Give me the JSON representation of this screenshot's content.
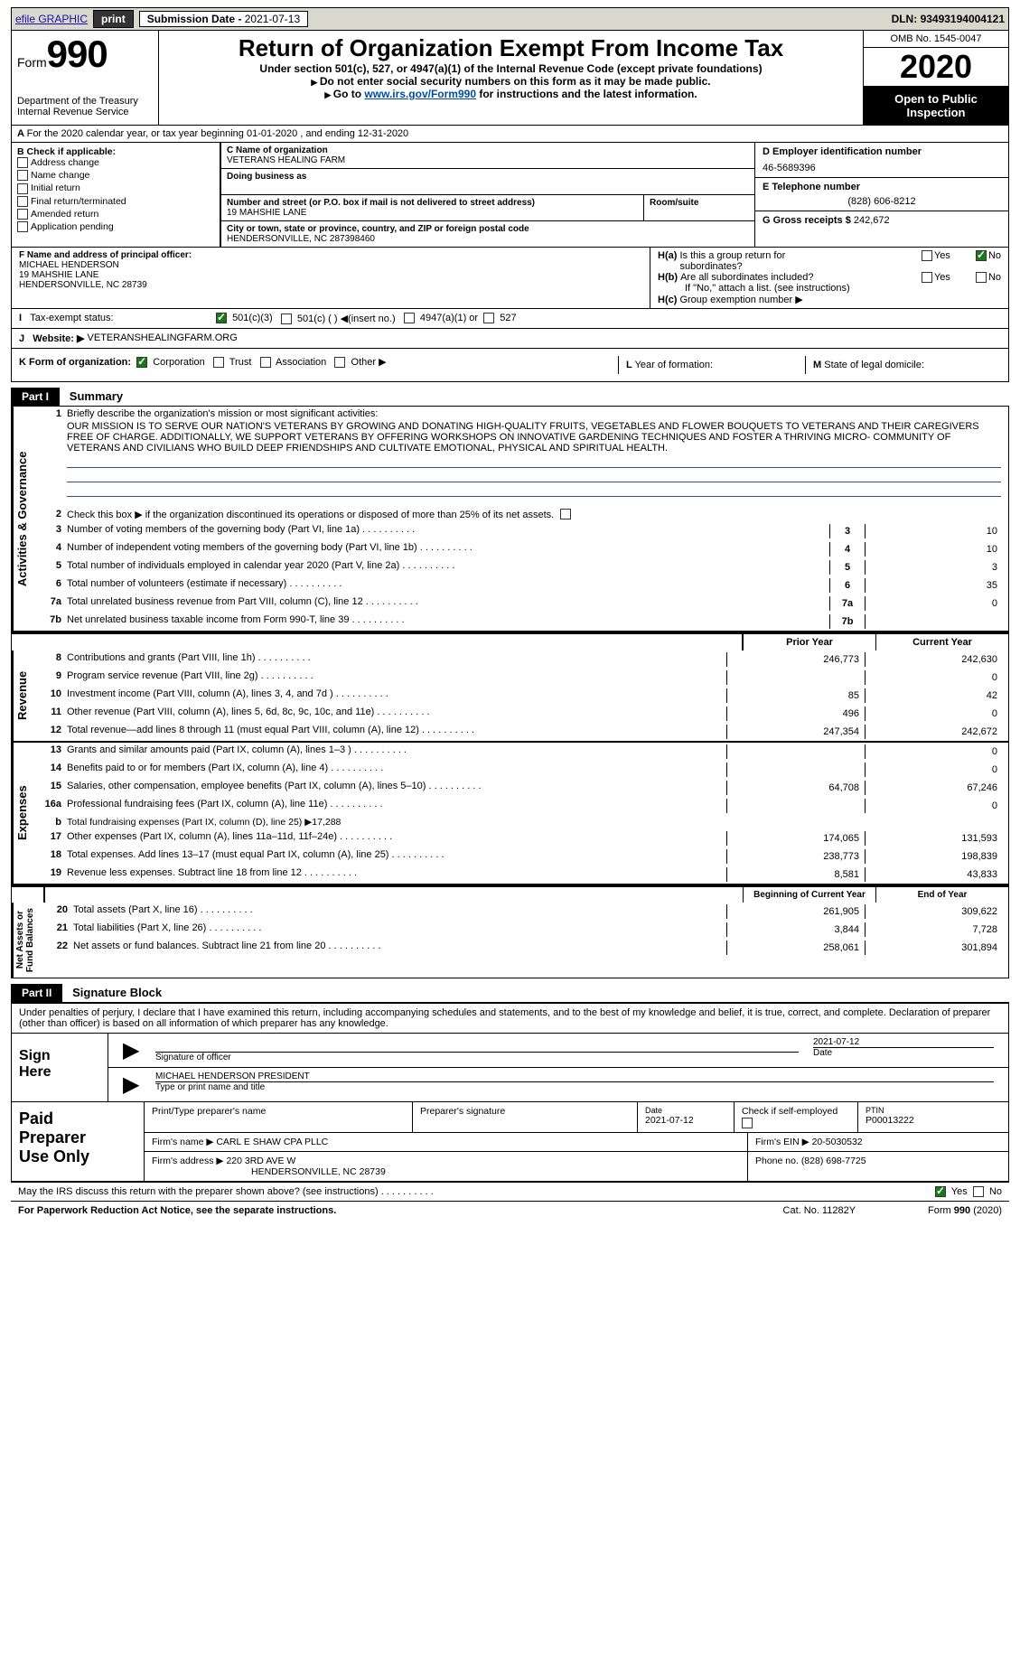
{
  "top": {
    "efile": "efile GRAPHIC",
    "print": "print",
    "sub_label": "Submission Date - ",
    "sub_date": "2021-07-13",
    "dln_label": "DLN: ",
    "dln": "93493194004121"
  },
  "header": {
    "form_word": "Form",
    "form_no": "990",
    "dept1": "Department of the Treasury",
    "dept2": "Internal Revenue Service",
    "title": "Return of Organization Exempt From Income Tax",
    "sub1": "Under section 501(c), 527, or 4947(a)(1) of the Internal Revenue Code (except private foundations)",
    "sub2": "Do not enter social security numbers on this form as it may be made public.",
    "sub3_pre": "Go to ",
    "sub3_link": "www.irs.gov/Form990",
    "sub3_post": " for instructions and the latest information.",
    "omb": "OMB No. 1545-0047",
    "year": "2020",
    "open1": "Open to Public",
    "open2": "Inspection"
  },
  "periodA": "For the 2020 calendar year, or tax year beginning 01-01-2020    , and ending 12-31-2020",
  "B": {
    "hdr": "Check if applicable:",
    "addr": "Address change",
    "name": "Name change",
    "init": "Initial return",
    "finalr": "Final return/terminated",
    "amend": "Amended return",
    "app": "Application pending"
  },
  "C": {
    "name_lbl": "C Name of organization",
    "name": "VETERANS HEALING FARM",
    "dba_lbl": "Doing business as",
    "street_lbl": "Number and street (or P.O. box if mail is not delivered to street address)",
    "room_lbl": "Room/suite",
    "street": "19 MAHSHIE LANE",
    "city_lbl": "City or town, state or province, country, and ZIP or foreign postal code",
    "city": "HENDERSONVILLE, NC  287398460"
  },
  "D": {
    "lbl": "D Employer identification number",
    "val": "46-5689396"
  },
  "E": {
    "lbl": "E Telephone number",
    "val": "(828) 606-8212"
  },
  "G": {
    "lbl": "G Gross receipts $",
    "val": "242,672"
  },
  "F": {
    "lbl": "F  Name and address of principal officer:",
    "name": "MICHAEL HENDERSON",
    "street": "19 MAHSHIE LANE",
    "city": "HENDERSONVILLE, NC  28739"
  },
  "H": {
    "a": "Is this a group return for",
    "a2": "subordinates?",
    "b": "Are all subordinates included?",
    "bnote": "If \"No,\" attach a list. (see instructions)",
    "c": "Group exemption number ▶",
    "yes": "Yes",
    "no": "No"
  },
  "I": {
    "lbl": "Tax-exempt status:",
    "c3": "501(c)(3)",
    "c": "501(c) (  ) ◀(insert no.)",
    "a1": "4947(a)(1) or",
    "s527": "527"
  },
  "J": {
    "lbl": "Website: ▶",
    "val": "VETERANSHEALINGFARM.ORG"
  },
  "K": {
    "lbl": "Form of organization:",
    "corp": "Corporation",
    "trust": "Trust",
    "assoc": "Association",
    "other": "Other ▶"
  },
  "L": {
    "lbl": "Year of formation:"
  },
  "M": {
    "lbl": "State of legal domicile:"
  },
  "part1": {
    "hdr": "Part I",
    "title": "Summary"
  },
  "s1": {
    "l1": "Briefly describe the organization's mission or most significant activities:",
    "mission": "OUR MISSION IS TO SERVE OUR NATION'S VETERANS BY GROWING AND DONATING HIGH-QUALITY FRUITS, VEGETABLES AND FLOWER BOUQUETS TO VETERANS AND THEIR CAREGIVERS FREE OF CHARGE. ADDITIONALLY, WE SUPPORT VETERANS BY OFFERING WORKSHOPS ON INNOVATIVE GARDENING TECHNIQUES AND FOSTER A THRIVING MICRO- COMMUNITY OF VETERANS AND CIVILIANS WHO BUILD DEEP FRIENDSHIPS AND CULTIVATE EMOTIONAL, PHYSICAL AND SPIRITUAL HEALTH.",
    "l2": "Check this box ▶         if the organization discontinued its operations or disposed of more than 25% of its net assets.",
    "rows": [
      {
        "n": "3",
        "t": "Number of voting members of the governing body (Part VI, line 1a)",
        "v": "10"
      },
      {
        "n": "4",
        "t": "Number of independent voting members of the governing body (Part VI, line 1b)",
        "v": "10"
      },
      {
        "n": "5",
        "t": "Total number of individuals employed in calendar year 2020 (Part V, line 2a)",
        "v": "3"
      },
      {
        "n": "6",
        "t": "Total number of volunteers (estimate if necessary)",
        "v": "35"
      },
      {
        "n": "7a",
        "t": "Total unrelated business revenue from Part VIII, column (C), line 12",
        "v": "0"
      },
      {
        "n": "7b",
        "t": "Net unrelated business taxable income from Form 990-T, line 39",
        "num": "7b",
        "v": ""
      }
    ]
  },
  "two_hdr": {
    "prior": "Prior Year",
    "curr": "Current Year"
  },
  "rev": {
    "rows": [
      {
        "n": "8",
        "t": "Contributions and grants (Part VIII, line 1h)",
        "p": "246,773",
        "c": "242,630"
      },
      {
        "n": "9",
        "t": "Program service revenue (Part VIII, line 2g)",
        "p": "",
        "c": "0"
      },
      {
        "n": "10",
        "t": "Investment income (Part VIII, column (A), lines 3, 4, and 7d )",
        "p": "85",
        "c": "42"
      },
      {
        "n": "11",
        "t": "Other revenue (Part VIII, column (A), lines 5, 6d, 8c, 9c, 10c, and 11e)",
        "p": "496",
        "c": "0"
      },
      {
        "n": "12",
        "t": "Total revenue—add lines 8 through 11 (must equal Part VIII, column (A), line 12)",
        "p": "247,354",
        "c": "242,672"
      }
    ]
  },
  "exp": {
    "rows": [
      {
        "n": "13",
        "t": "Grants and similar amounts paid (Part IX, column (A), lines 1–3 )",
        "p": "",
        "c": "0"
      },
      {
        "n": "14",
        "t": "Benefits paid to or for members (Part IX, column (A), line 4)",
        "p": "",
        "c": "0"
      },
      {
        "n": "15",
        "t": "Salaries, other compensation, employee benefits (Part IX, column (A), lines 5–10)",
        "p": "64,708",
        "c": "67,246"
      },
      {
        "n": "16a",
        "t": "Professional fundraising fees (Part IX, column (A), line 11e)",
        "p": "",
        "c": "0"
      },
      {
        "n": "b",
        "t": "Total fundraising expenses (Part IX, column (D), line 25) ▶17,288",
        "p": null,
        "c": null
      },
      {
        "n": "17",
        "t": "Other expenses (Part IX, column (A), lines 11a–11d, 11f–24e)",
        "p": "174,065",
        "c": "131,593"
      },
      {
        "n": "18",
        "t": "Total expenses. Add lines 13–17 (must equal Part IX, column (A), line 25)",
        "p": "238,773",
        "c": "198,839"
      },
      {
        "n": "19",
        "t": "Revenue less expenses. Subtract line 18 from line 12",
        "p": "8,581",
        "c": "43,833"
      }
    ]
  },
  "na": {
    "hdr": {
      "prior": "Beginning of Current Year",
      "curr": "End of Year"
    },
    "rows": [
      {
        "n": "20",
        "t": "Total assets (Part X, line 16)",
        "p": "261,905",
        "c": "309,622"
      },
      {
        "n": "21",
        "t": "Total liabilities (Part X, line 26)",
        "p": "3,844",
        "c": "7,728"
      },
      {
        "n": "22",
        "t": "Net assets or fund balances. Subtract line 21 from line 20",
        "p": "258,061",
        "c": "301,894"
      }
    ]
  },
  "tabs": {
    "act": "Activities & Governance",
    "rev": "Revenue",
    "exp": "Expenses",
    "na": "Net Assets or\nFund Balances"
  },
  "part2": {
    "hdr": "Part II",
    "title": "Signature Block",
    "decl": "Under penalties of perjury, I declare that I have examined this return, including accompanying schedules and statements, and to the best of my knowledge and belief, it is true, correct, and complete. Declaration of preparer (other than officer) is based on all information of which preparer has any knowledge."
  },
  "sign": {
    "here": "Sign Here",
    "sigoff": "Signature of officer",
    "date": "2021-07-12",
    "name": "MICHAEL HENDERSON  PRESIDENT",
    "typelbl": "Type or print name and title"
  },
  "paid": {
    "title": "Paid Preparer Use Only",
    "r1": {
      "a": "Print/Type preparer's name",
      "b": "Preparer's signature",
      "c": "Date",
      "cd": "2021-07-12",
      "d": "Check        if self-employed",
      "e": "PTIN",
      "ev": "P00013222"
    },
    "r2": {
      "a": "Firm's name    ▶",
      "av": "CARL E SHAW CPA PLLC",
      "b": "Firm's EIN ▶",
      "bv": "20-5030532"
    },
    "r3": {
      "a": "Firm's address ▶",
      "av": "220 3RD AVE W",
      "av2": "HENDERSONVILLE, NC  28739",
      "b": "Phone no.",
      "bv": "(828) 698-7725"
    }
  },
  "may": {
    "q": "May the IRS discuss this return with the preparer shown above? (see instructions)",
    "yes": "Yes",
    "no": "No"
  },
  "footer": {
    "l": "For Paperwork Reduction Act Notice, see the separate instructions.",
    "m": "Cat. No. 11282Y",
    "r": "Form 990 (2020)"
  }
}
